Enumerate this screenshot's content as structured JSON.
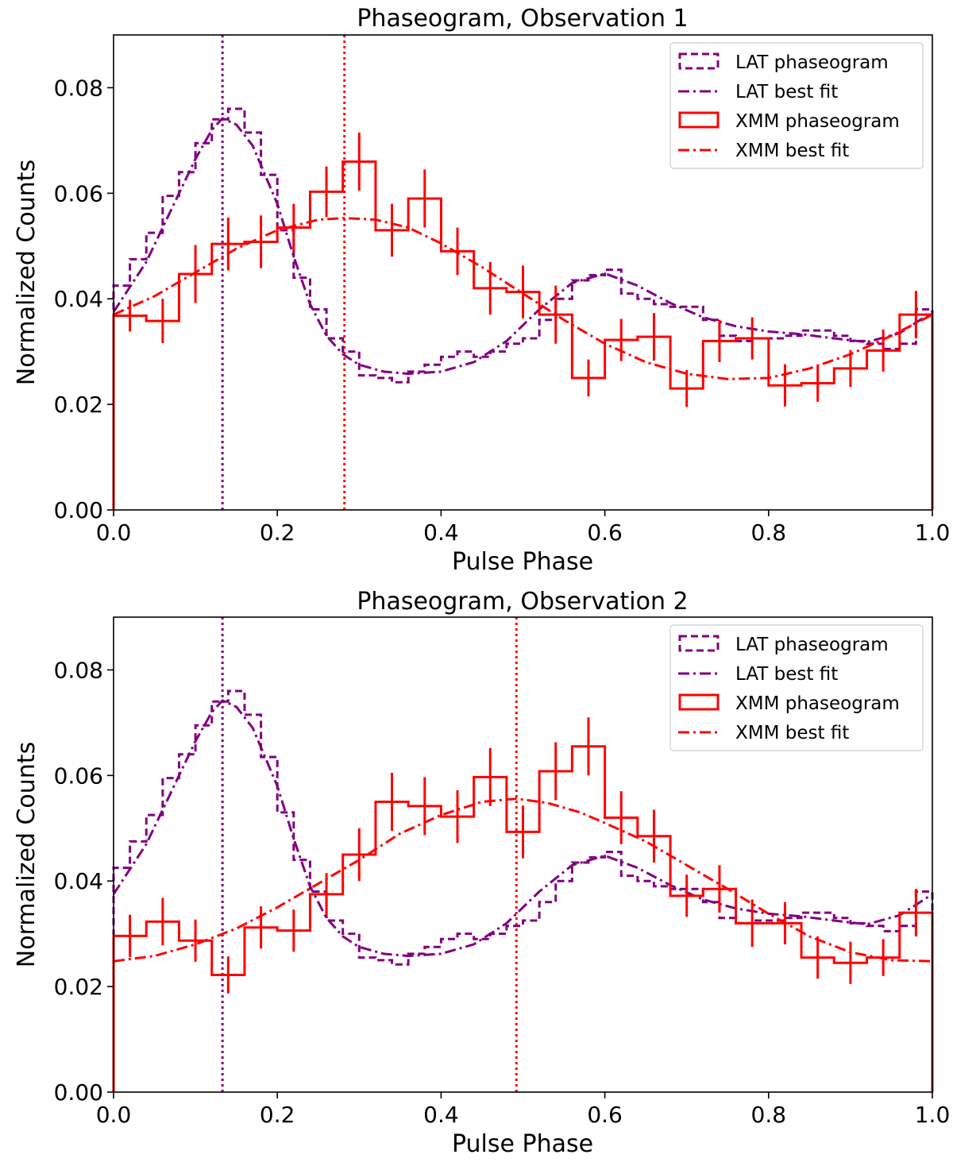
{
  "figure": {
    "colors": {
      "lat": "#800080",
      "xmm": "#ff0000",
      "axes": "#000000",
      "legend_border": "#cccccc"
    }
  },
  "chart_data": [
    {
      "type": "line",
      "title": "Phaseogram, Observation 1",
      "xlabel": "Pulse Phase",
      "ylabel": "Normalized Counts",
      "xlim": [
        0.0,
        1.0
      ],
      "ylim": [
        0.0,
        0.09
      ],
      "xticks": [
        0.0,
        0.2,
        0.4,
        0.6,
        0.8,
        1.0
      ],
      "xtick_labels": [
        "0.0",
        "0.2",
        "0.4",
        "0.6",
        "0.8",
        "1.0"
      ],
      "yticks": [
        0.0,
        0.02,
        0.04,
        0.06,
        0.08
      ],
      "ytick_labels": [
        "0.00",
        "0.02",
        "0.04",
        "0.06",
        "0.08"
      ],
      "grid": false,
      "legend_position": "top-right",
      "vlines": [
        {
          "x": 0.133,
          "color": "#800080",
          "style": "dotted"
        },
        {
          "x": 0.282,
          "color": "#ff0000",
          "style": "dotted"
        }
      ],
      "series": [
        {
          "name": "LAT phaseogram",
          "kind": "step-hist",
          "style": "dashed",
          "color": "#800080",
          "bin_edges": [
            0.0,
            0.02,
            0.04,
            0.06,
            0.08,
            0.1,
            0.12,
            0.14,
            0.16,
            0.18,
            0.2,
            0.22,
            0.24,
            0.26,
            0.28,
            0.3,
            0.32,
            0.34,
            0.36,
            0.38,
            0.4,
            0.42,
            0.44,
            0.46,
            0.48,
            0.5,
            0.52,
            0.54,
            0.56,
            0.58,
            0.6,
            0.62,
            0.64,
            0.66,
            0.68,
            0.7,
            0.72,
            0.74,
            0.76,
            0.78,
            0.8,
            0.82,
            0.84,
            0.86,
            0.88,
            0.9,
            0.92,
            0.94,
            0.96,
            0.98,
            1.0
          ],
          "values": [
            0.0425,
            0.0475,
            0.0525,
            0.0595,
            0.064,
            0.0695,
            0.074,
            0.076,
            0.0715,
            0.0635,
            0.053,
            0.044,
            0.038,
            0.0325,
            0.03,
            0.0255,
            0.025,
            0.0242,
            0.0262,
            0.0275,
            0.029,
            0.03,
            0.029,
            0.03,
            0.0315,
            0.0325,
            0.036,
            0.04,
            0.0435,
            0.0445,
            0.0455,
            0.041,
            0.04,
            0.039,
            0.0385,
            0.0385,
            0.036,
            0.033,
            0.032,
            0.0325,
            0.0325,
            0.033,
            0.034,
            0.034,
            0.033,
            0.032,
            0.0315,
            0.0305,
            0.0315,
            0.038
          ]
        },
        {
          "name": "LAT best fit",
          "kind": "fit",
          "style": "dashdot",
          "color": "#800080",
          "x": [
            0.0,
            0.04,
            0.08,
            0.1,
            0.12,
            0.133,
            0.15,
            0.17,
            0.2,
            0.22,
            0.24,
            0.26,
            0.28,
            0.3,
            0.33,
            0.36,
            0.4,
            0.44,
            0.48,
            0.52,
            0.56,
            0.6,
            0.64,
            0.68,
            0.72,
            0.76,
            0.8,
            0.84,
            0.88,
            0.92,
            0.96,
            1.0
          ],
          "y": [
            0.0375,
            0.047,
            0.06,
            0.0665,
            0.072,
            0.0742,
            0.073,
            0.069,
            0.058,
            0.048,
            0.039,
            0.033,
            0.0295,
            0.0275,
            0.0262,
            0.0258,
            0.0262,
            0.028,
            0.032,
            0.038,
            0.043,
            0.0448,
            0.0425,
            0.0392,
            0.0365,
            0.0348,
            0.0338,
            0.0333,
            0.0325,
            0.0318,
            0.0335,
            0.0375
          ]
        },
        {
          "name": "XMM phaseogram",
          "kind": "step-hist-errors",
          "style": "solid",
          "color": "#ff0000",
          "bin_edges": [
            0.0,
            0.04,
            0.08,
            0.12,
            0.16,
            0.2,
            0.24,
            0.28,
            0.32,
            0.36,
            0.4,
            0.44,
            0.48,
            0.52,
            0.56,
            0.6,
            0.64,
            0.68,
            0.72,
            0.76,
            0.8,
            0.84,
            0.88,
            0.92,
            0.96,
            1.0
          ],
          "values": [
            0.0368,
            0.0358,
            0.0447,
            0.0504,
            0.0508,
            0.0535,
            0.0603,
            0.066,
            0.053,
            0.059,
            0.049,
            0.042,
            0.0413,
            0.037,
            0.025,
            0.0322,
            0.0328,
            0.023,
            0.032,
            0.0325,
            0.0236,
            0.024,
            0.0268,
            0.0302,
            0.037
          ],
          "errors": [
            0.003,
            0.0042,
            0.0055,
            0.005,
            0.005,
            0.0045,
            0.0048,
            0.0055,
            0.005,
            0.0055,
            0.0045,
            0.005,
            0.005,
            0.0055,
            0.0035,
            0.004,
            0.0045,
            0.0035,
            0.004,
            0.004,
            0.004,
            0.0035,
            0.0035,
            0.004,
            0.0045
          ]
        },
        {
          "name": "XMM best fit",
          "kind": "fit",
          "style": "dashdot",
          "color": "#ff0000",
          "x": [
            0.0,
            0.05,
            0.1,
            0.15,
            0.2,
            0.25,
            0.282,
            0.32,
            0.36,
            0.4,
            0.45,
            0.5,
            0.55,
            0.6,
            0.65,
            0.7,
            0.75,
            0.8,
            0.85,
            0.9,
            0.95,
            1.0
          ],
          "y": [
            0.037,
            0.0405,
            0.045,
            0.0495,
            0.053,
            0.055,
            0.0553,
            0.055,
            0.0535,
            0.0505,
            0.046,
            0.041,
            0.036,
            0.0315,
            0.028,
            0.0258,
            0.0248,
            0.025,
            0.0268,
            0.0295,
            0.033,
            0.037
          ]
        }
      ]
    },
    {
      "type": "line",
      "title": "Phaseogram, Observation 2",
      "xlabel": "Pulse Phase",
      "ylabel": "Normalized Counts",
      "xlim": [
        0.0,
        1.0
      ],
      "ylim": [
        0.0,
        0.09
      ],
      "xticks": [
        0.0,
        0.2,
        0.4,
        0.6,
        0.8,
        1.0
      ],
      "xtick_labels": [
        "0.0",
        "0.2",
        "0.4",
        "0.6",
        "0.8",
        "1.0"
      ],
      "yticks": [
        0.0,
        0.02,
        0.04,
        0.06,
        0.08
      ],
      "ytick_labels": [
        "0.00",
        "0.02",
        "0.04",
        "0.06",
        "0.08"
      ],
      "grid": false,
      "legend_position": "top-right",
      "vlines": [
        {
          "x": 0.133,
          "color": "#800080",
          "style": "dotted"
        },
        {
          "x": 0.492,
          "color": "#ff0000",
          "style": "dotted"
        }
      ],
      "series": [
        {
          "name": "LAT phaseogram",
          "kind": "step-hist",
          "style": "dashed",
          "color": "#800080",
          "bin_edges": [
            0.0,
            0.02,
            0.04,
            0.06,
            0.08,
            0.1,
            0.12,
            0.14,
            0.16,
            0.18,
            0.2,
            0.22,
            0.24,
            0.26,
            0.28,
            0.3,
            0.32,
            0.34,
            0.36,
            0.38,
            0.4,
            0.42,
            0.44,
            0.46,
            0.48,
            0.5,
            0.52,
            0.54,
            0.56,
            0.58,
            0.6,
            0.62,
            0.64,
            0.66,
            0.68,
            0.7,
            0.72,
            0.74,
            0.76,
            0.78,
            0.8,
            0.82,
            0.84,
            0.86,
            0.88,
            0.9,
            0.92,
            0.94,
            0.96,
            0.98,
            1.0
          ],
          "values": [
            0.0425,
            0.0475,
            0.0525,
            0.0595,
            0.064,
            0.0695,
            0.074,
            0.076,
            0.0715,
            0.0635,
            0.053,
            0.044,
            0.038,
            0.0325,
            0.03,
            0.0255,
            0.025,
            0.0242,
            0.0262,
            0.0275,
            0.029,
            0.03,
            0.029,
            0.03,
            0.0315,
            0.0325,
            0.036,
            0.04,
            0.0435,
            0.0445,
            0.0455,
            0.041,
            0.04,
            0.039,
            0.0385,
            0.0385,
            0.036,
            0.033,
            0.032,
            0.0325,
            0.0325,
            0.033,
            0.034,
            0.034,
            0.033,
            0.032,
            0.0315,
            0.0305,
            0.0315,
            0.038
          ]
        },
        {
          "name": "LAT best fit",
          "kind": "fit",
          "style": "dashdot",
          "color": "#800080",
          "x": [
            0.0,
            0.04,
            0.08,
            0.1,
            0.12,
            0.133,
            0.15,
            0.17,
            0.2,
            0.22,
            0.24,
            0.26,
            0.28,
            0.3,
            0.33,
            0.36,
            0.4,
            0.44,
            0.48,
            0.52,
            0.56,
            0.6,
            0.64,
            0.68,
            0.72,
            0.76,
            0.8,
            0.84,
            0.88,
            0.92,
            0.96,
            1.0
          ],
          "y": [
            0.0375,
            0.047,
            0.06,
            0.0665,
            0.072,
            0.0742,
            0.073,
            0.069,
            0.058,
            0.048,
            0.039,
            0.033,
            0.0295,
            0.0275,
            0.0262,
            0.0258,
            0.0262,
            0.028,
            0.032,
            0.038,
            0.043,
            0.0448,
            0.0425,
            0.0392,
            0.0365,
            0.0348,
            0.0338,
            0.0333,
            0.0325,
            0.0318,
            0.0335,
            0.0375
          ]
        },
        {
          "name": "XMM phaseogram",
          "kind": "step-hist-errors",
          "style": "solid",
          "color": "#ff0000",
          "bin_edges": [
            0.0,
            0.04,
            0.08,
            0.12,
            0.16,
            0.2,
            0.24,
            0.28,
            0.32,
            0.36,
            0.4,
            0.44,
            0.48,
            0.52,
            0.56,
            0.6,
            0.64,
            0.68,
            0.72,
            0.76,
            0.8,
            0.84,
            0.88,
            0.92,
            0.96,
            1.0
          ],
          "values": [
            0.0296,
            0.0323,
            0.0287,
            0.0222,
            0.0312,
            0.0306,
            0.0375,
            0.045,
            0.055,
            0.0542,
            0.0522,
            0.0597,
            0.0493,
            0.0608,
            0.0655,
            0.052,
            0.0485,
            0.0372,
            0.0385,
            0.032,
            0.032,
            0.0255,
            0.0245,
            0.0255,
            0.034
          ],
          "errors": [
            0.004,
            0.0045,
            0.004,
            0.0035,
            0.004,
            0.004,
            0.004,
            0.005,
            0.0055,
            0.0055,
            0.005,
            0.0055,
            0.005,
            0.0055,
            0.0055,
            0.005,
            0.005,
            0.004,
            0.0045,
            0.0045,
            0.004,
            0.004,
            0.004,
            0.0035,
            0.0045
          ]
        },
        {
          "name": "XMM best fit",
          "kind": "fit",
          "style": "dashdot",
          "color": "#ff0000",
          "x": [
            0.0,
            0.05,
            0.1,
            0.15,
            0.2,
            0.25,
            0.3,
            0.35,
            0.4,
            0.45,
            0.492,
            0.53,
            0.57,
            0.6,
            0.65,
            0.7,
            0.75,
            0.8,
            0.85,
            0.9,
            0.95,
            1.0
          ],
          "y": [
            0.0248,
            0.0258,
            0.028,
            0.031,
            0.035,
            0.0395,
            0.044,
            0.049,
            0.0525,
            0.055,
            0.0556,
            0.0548,
            0.053,
            0.051,
            0.0475,
            0.043,
            0.0385,
            0.0338,
            0.0295,
            0.0265,
            0.025,
            0.0248
          ]
        }
      ]
    }
  ]
}
